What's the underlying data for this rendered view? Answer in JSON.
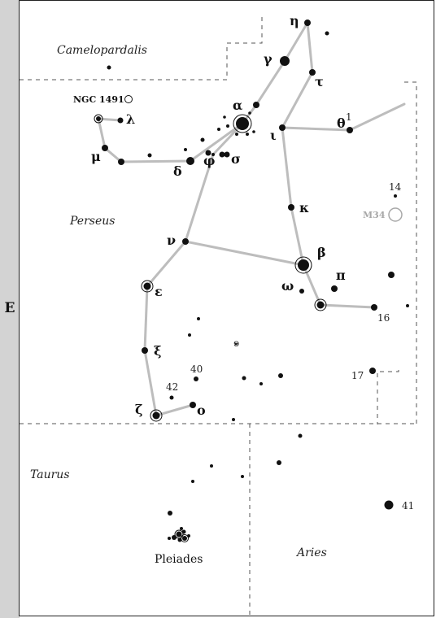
{
  "east_label": "E",
  "constellations": {
    "camelopardalis": "Camelopardalis",
    "perseus": "Perseus",
    "taurus": "Taurus",
    "aries": "Aries"
  },
  "clusters": {
    "pleiades": "Pleiades",
    "ngc1491": "NGC 1491",
    "m34": "M34"
  },
  "stars": {
    "alpha": "α",
    "gamma": "γ",
    "eta": "η",
    "tau": "τ",
    "iota": "ι",
    "theta": "θ",
    "theta_sup": "1",
    "kappa": "κ",
    "beta": "β",
    "pi": "π",
    "omega": "ω",
    "nu": "ν",
    "epsilon": "ε",
    "xi": "ξ",
    "zeta": "ζ",
    "omicron": "ο",
    "lambda": "λ",
    "mu": "μ",
    "delta": "δ",
    "phi": "φ",
    "sigma": "σ"
  },
  "numbers": {
    "n14": "14",
    "n16": "16",
    "n17": "17",
    "n40": "40",
    "n41": "41",
    "n42": "42"
  },
  "colors": {
    "figure_line": "#bdbdbd",
    "boundary": "#555555",
    "side_strip": "#d3d3d3",
    "m34": "#a8a8a8"
  }
}
